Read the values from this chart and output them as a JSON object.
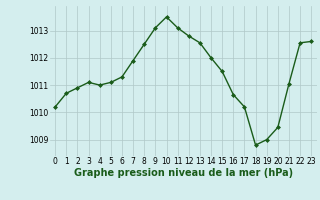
{
  "x": [
    0,
    1,
    2,
    3,
    4,
    5,
    6,
    7,
    8,
    9,
    10,
    11,
    12,
    13,
    14,
    15,
    16,
    17,
    18,
    19,
    20,
    21,
    22,
    23
  ],
  "y": [
    1010.2,
    1010.7,
    1010.9,
    1011.1,
    1011.0,
    1011.1,
    1011.3,
    1011.9,
    1012.5,
    1013.1,
    1013.5,
    1013.1,
    1012.8,
    1012.55,
    1012.0,
    1011.5,
    1010.65,
    1010.2,
    1008.8,
    1009.0,
    1009.45,
    1011.05,
    1012.55,
    1012.6
  ],
  "line_color": "#1a5c1a",
  "marker": "D",
  "marker_size": 2.0,
  "line_width": 1.0,
  "bg_color": "#d4eeee",
  "grid_color": "#b0c8c8",
  "xlabel": "Graphe pression niveau de la mer (hPa)",
  "xlabel_fontsize": 7.0,
  "xlabel_color": "#1a5c1a",
  "xlabel_weight": "bold",
  "yticks": [
    1009,
    1010,
    1011,
    1012,
    1013
  ],
  "ylim": [
    1008.4,
    1013.9
  ],
  "xlim": [
    -0.5,
    23.5
  ],
  "xtick_labels": [
    "0",
    "1",
    "2",
    "3",
    "4",
    "5",
    "6",
    "7",
    "8",
    "9",
    "10",
    "11",
    "12",
    "13",
    "14",
    "15",
    "16",
    "17",
    "18",
    "19",
    "20",
    "21",
    "22",
    "23"
  ],
  "tick_fontsize": 5.5
}
